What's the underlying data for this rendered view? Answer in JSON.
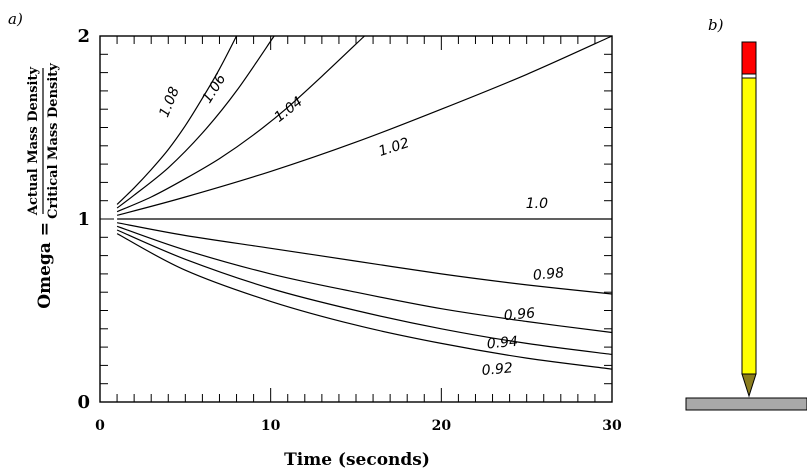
{
  "panel_a_label": "a)",
  "panel_b_label": "b)",
  "chart_data": {
    "type": "line",
    "xlabel": "Time (seconds)",
    "ylabel_prefix": "Omega =",
    "ylabel_numerator": "Actual Mass Density",
    "ylabel_denominator": "Critical Mass Density",
    "xlim": [
      0,
      30
    ],
    "ylim": [
      0,
      2
    ],
    "x_ticks": [
      0,
      10,
      20,
      30
    ],
    "y_ticks": [
      0,
      1,
      2
    ],
    "x_tick_labels": [
      "0",
      "10",
      "20",
      "30"
    ],
    "y_tick_labels": [
      "0",
      "1",
      "2"
    ],
    "series": [
      {
        "name": "1.08",
        "x": [
          1,
          2,
          3,
          4,
          5,
          6,
          7,
          8.0
        ],
        "y": [
          1.08,
          1.17,
          1.27,
          1.38,
          1.51,
          1.66,
          1.82,
          2.0
        ]
      },
      {
        "name": "1.06",
        "x": [
          1,
          2,
          4,
          6,
          8,
          10.2
        ],
        "y": [
          1.06,
          1.13,
          1.28,
          1.47,
          1.7,
          2.0
        ]
      },
      {
        "name": "1.04",
        "x": [
          1,
          3,
          5,
          7,
          9,
          11,
          13,
          15.5
        ],
        "y": [
          1.04,
          1.12,
          1.22,
          1.33,
          1.46,
          1.61,
          1.78,
          2.0
        ]
      },
      {
        "name": "1.02",
        "x": [
          1,
          5,
          10,
          15,
          20,
          25,
          30
        ],
        "y": [
          1.02,
          1.12,
          1.26,
          1.42,
          1.6,
          1.79,
          2.0
        ]
      },
      {
        "name": "1.0",
        "x": [
          1,
          30
        ],
        "y": [
          1.0,
          1.0
        ]
      },
      {
        "name": "0.98",
        "x": [
          1,
          5,
          10,
          15,
          20,
          25,
          30
        ],
        "y": [
          0.98,
          0.91,
          0.84,
          0.77,
          0.7,
          0.64,
          0.59
        ]
      },
      {
        "name": "0.96",
        "x": [
          1,
          5,
          10,
          15,
          20,
          25,
          30
        ],
        "y": [
          0.96,
          0.83,
          0.7,
          0.6,
          0.51,
          0.44,
          0.38
        ]
      },
      {
        "name": "0.94",
        "x": [
          1,
          5,
          10,
          15,
          20,
          25,
          30
        ],
        "y": [
          0.94,
          0.78,
          0.62,
          0.5,
          0.4,
          0.32,
          0.26
        ]
      },
      {
        "name": "0.92",
        "x": [
          1,
          5,
          10,
          15,
          20,
          25,
          30
        ],
        "y": [
          0.92,
          0.72,
          0.55,
          0.42,
          0.32,
          0.24,
          0.18
        ]
      }
    ],
    "curve_labels": [
      {
        "text": "1.08",
        "x": 4.3,
        "y": 1.63,
        "angle": -68
      },
      {
        "text": "1.06",
        "x": 6.9,
        "y": 1.7,
        "angle": -58
      },
      {
        "text": "1.04",
        "x": 11.2,
        "y": 1.58,
        "angle": -38
      },
      {
        "text": "1.02",
        "x": 17.3,
        "y": 1.37,
        "angle": -18
      },
      {
        "text": "1.0",
        "x": 25.6,
        "y": 1.06,
        "angle": 0
      },
      {
        "text": "0.98",
        "x": 26.3,
        "y": 0.675,
        "angle": -5
      },
      {
        "text": "0.96",
        "x": 24.6,
        "y": 0.455,
        "angle": -5
      },
      {
        "text": "0.94",
        "x": 23.6,
        "y": 0.3,
        "angle": -5
      },
      {
        "text": "0.92",
        "x": 23.3,
        "y": 0.155,
        "angle": -5
      }
    ]
  },
  "illustration": {
    "pencil_body_color": "#ffff00",
    "pencil_eraser_color": "#ff0000",
    "pencil_tip_color": "#8b7d1e",
    "surface_color": "#a9a9a9"
  }
}
